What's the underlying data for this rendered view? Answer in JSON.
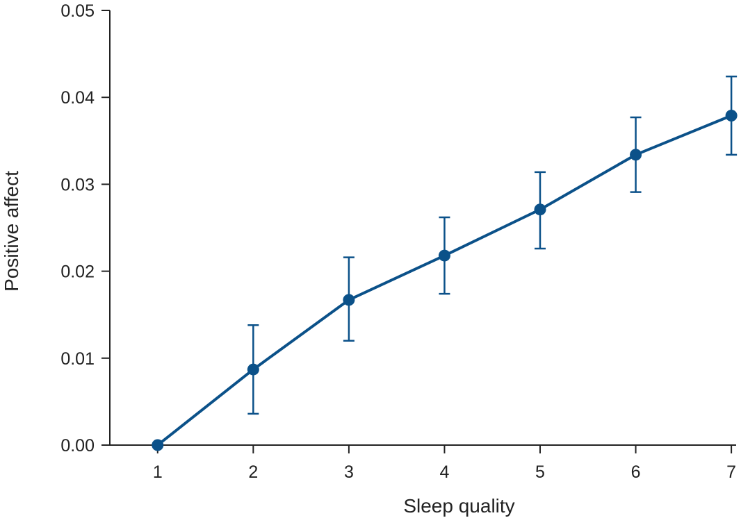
{
  "chart_data": {
    "type": "line",
    "title": "",
    "xlabel": "Sleep quality",
    "ylabel": "Positive affect",
    "x": [
      1,
      2,
      3,
      4,
      5,
      6,
      7
    ],
    "xlim": [
      0.5,
      7.05
    ],
    "ylim": [
      0,
      0.05
    ],
    "x_ticks": [
      "1",
      "2",
      "3",
      "4",
      "5",
      "6",
      "7"
    ],
    "y_ticks": [
      "0.00",
      "0.01",
      "0.02",
      "0.03",
      "0.04",
      "0.05"
    ],
    "series": [
      {
        "values": [
          0.0,
          0.0087,
          0.0167,
          0.0218,
          0.0271,
          0.0334,
          0.0379
        ],
        "error_lower": [
          0.0,
          0.0036,
          0.012,
          0.0174,
          0.0226,
          0.0291,
          0.0334
        ],
        "error_upper": [
          0.0,
          0.0138,
          0.0216,
          0.0262,
          0.0314,
          0.0377,
          0.0424
        ],
        "color": "#0b5189"
      }
    ],
    "grid": false,
    "legend": "none"
  }
}
